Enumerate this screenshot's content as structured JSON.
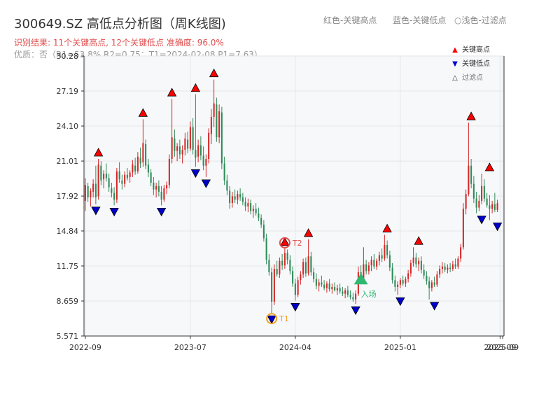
{
  "header": {
    "title": "300649.SZ 高低点分析图（周K线图)",
    "hint_red": "红色-关键高点",
    "hint_blue": "蓝色-关键低点",
    "hint_light": "○浅色-过滤点",
    "summary": "识别结果: 11个关键高点, 12个关键低点  准确度: 96.0%",
    "quality": "优质：否（R1=53.8%  R2=0.75；T1=2024-02-08 P1=7.63）"
  },
  "legend": {
    "high": "关键高点",
    "low": "关键低点",
    "filtered": "过滤点"
  },
  "colors": {
    "up": "#d62728",
    "down": "#2e8b57",
    "high_marker": "#ff0000",
    "low_marker": "#0000cc",
    "t_marker": "#f0a020",
    "t2_marker": "#e24d4d",
    "entry_marker": "#2eb872"
  },
  "chart_data": {
    "type": "candlestick",
    "y_ticks": [
      "5.571",
      "8.659",
      "11.75",
      "14.84",
      "17.92",
      "21.01",
      "24.10",
      "27.19",
      "30.28"
    ],
    "ylim": [
      5.571,
      30.28
    ],
    "x_tick_labels": [
      "2022-09",
      "2023-07",
      "2024-04",
      "2025-01",
      "2025-09",
      "2025-09"
    ],
    "x_tick_weeks": [
      0,
      40,
      80,
      120,
      158,
      159
    ],
    "week_count": 160,
    "annotations": {
      "t1_label": "T1",
      "t2_label": "T2",
      "entry_label": "入场"
    },
    "highs": [
      {
        "week": 5,
        "value": 21.2
      },
      {
        "week": 22,
        "value": 24.7
      },
      {
        "week": 33,
        "value": 26.5
      },
      {
        "week": 42,
        "value": 26.9
      },
      {
        "week": 49,
        "value": 28.2
      },
      {
        "week": 76,
        "value": 13.3
      },
      {
        "week": 85,
        "value": 14.1
      },
      {
        "week": 115,
        "value": 14.5
      },
      {
        "week": 127,
        "value": 13.4
      },
      {
        "week": 147,
        "value": 24.4
      },
      {
        "week": 154,
        "value": 19.9
      }
    ],
    "lows": [
      {
        "week": 4,
        "value": 17.2
      },
      {
        "week": 11,
        "value": 17.1
      },
      {
        "week": 29,
        "value": 17.1
      },
      {
        "week": 42,
        "value": 20.5
      },
      {
        "week": 46,
        "value": 19.6
      },
      {
        "week": 71,
        "value": 7.6
      },
      {
        "week": 80,
        "value": 8.7
      },
      {
        "week": 103,
        "value": 8.4
      },
      {
        "week": 120,
        "value": 9.2
      },
      {
        "week": 133,
        "value": 8.8
      },
      {
        "week": 151,
        "value": 16.4
      },
      {
        "week": 157,
        "value": 15.8
      }
    ],
    "candles": [
      [
        17.5,
        19.5,
        16.6,
        18.9
      ],
      [
        18.8,
        19.1,
        17.4,
        17.8
      ],
      [
        17.8,
        18.6,
        17.0,
        18.4
      ],
      [
        18.3,
        19.4,
        17.8,
        19.0
      ],
      [
        19.0,
        20.6,
        17.2,
        17.8
      ],
      [
        17.9,
        21.2,
        17.6,
        20.7
      ],
      [
        20.6,
        21.0,
        18.9,
        19.3
      ],
      [
        19.4,
        20.2,
        18.6,
        19.9
      ],
      [
        19.9,
        20.8,
        19.2,
        19.5
      ],
      [
        19.5,
        19.9,
        18.3,
        18.7
      ],
      [
        18.6,
        19.1,
        17.8,
        18.2
      ],
      [
        18.2,
        18.7,
        17.1,
        17.6
      ],
      [
        17.6,
        20.4,
        17.3,
        20.1
      ],
      [
        20.1,
        20.9,
        19.1,
        19.4
      ],
      [
        19.3,
        19.8,
        18.5,
        19.0
      ],
      [
        19.0,
        20.1,
        18.7,
        19.8
      ],
      [
        19.8,
        20.4,
        19.3,
        19.5
      ],
      [
        19.6,
        20.2,
        19.1,
        20.0
      ],
      [
        20.0,
        21.1,
        19.6,
        20.7
      ],
      [
        20.6,
        21.3,
        19.8,
        20.1
      ],
      [
        20.1,
        21.8,
        19.9,
        21.4
      ],
      [
        21.3,
        22.2,
        20.4,
        20.8
      ],
      [
        20.9,
        24.7,
        20.5,
        22.6
      ],
      [
        22.5,
        22.9,
        20.3,
        20.6
      ],
      [
        20.7,
        21.2,
        19.6,
        20.0
      ],
      [
        20.0,
        20.3,
        18.8,
        19.1
      ],
      [
        19.1,
        19.6,
        18.0,
        18.5
      ],
      [
        18.5,
        19.1,
        17.8,
        18.8
      ],
      [
        18.8,
        19.3,
        17.9,
        18.3
      ],
      [
        18.3,
        18.8,
        17.1,
        17.6
      ],
      [
        17.6,
        18.9,
        17.4,
        18.6
      ],
      [
        18.6,
        19.2,
        18.1,
        18.9
      ],
      [
        18.9,
        21.6,
        18.6,
        21.2
      ],
      [
        21.2,
        26.5,
        20.8,
        23.1
      ],
      [
        23.0,
        23.8,
        21.4,
        21.9
      ],
      [
        21.9,
        22.6,
        21.0,
        22.3
      ],
      [
        22.3,
        22.9,
        21.2,
        21.6
      ],
      [
        21.6,
        22.4,
        20.8,
        22.0
      ],
      [
        22.0,
        23.5,
        21.5,
        23.0
      ],
      [
        22.9,
        23.6,
        21.7,
        22.1
      ],
      [
        22.1,
        24.5,
        21.9,
        24.0
      ],
      [
        24.0,
        24.8,
        21.6,
        22.0
      ],
      [
        22.0,
        26.9,
        20.5,
        21.3
      ],
      [
        21.4,
        22.9,
        20.9,
        22.4
      ],
      [
        22.4,
        23.2,
        21.1,
        21.5
      ],
      [
        21.5,
        22.3,
        20.2,
        20.6
      ],
      [
        20.6,
        21.6,
        19.6,
        21.2
      ],
      [
        21.2,
        23.9,
        20.8,
        23.5
      ],
      [
        23.4,
        25.6,
        22.5,
        24.9
      ],
      [
        24.9,
        28.2,
        24.0,
        26.1
      ],
      [
        26.0,
        26.6,
        22.7,
        23.1
      ],
      [
        23.1,
        26.0,
        22.6,
        25.4
      ],
      [
        25.3,
        25.8,
        20.3,
        20.8
      ],
      [
        20.8,
        21.4,
        18.9,
        19.3
      ],
      [
        19.3,
        19.8,
        18.0,
        18.4
      ],
      [
        18.4,
        18.8,
        16.8,
        17.3
      ],
      [
        17.3,
        18.3,
        16.9,
        17.9
      ],
      [
        17.9,
        18.5,
        17.3,
        17.6
      ],
      [
        17.6,
        18.4,
        17.2,
        18.1
      ],
      [
        18.1,
        18.6,
        17.5,
        17.8
      ],
      [
        17.8,
        18.2,
        17.1,
        17.4
      ],
      [
        17.4,
        17.8,
        16.6,
        17.0
      ],
      [
        17.0,
        17.7,
        16.5,
        17.3
      ],
      [
        17.3,
        17.6,
        16.3,
        16.6
      ],
      [
        16.6,
        17.1,
        16.0,
        16.8
      ],
      [
        16.8,
        17.3,
        16.2,
        16.4
      ],
      [
        16.4,
        16.9,
        15.7,
        16.0
      ],
      [
        16.0,
        16.3,
        15.1,
        15.4
      ],
      [
        15.4,
        15.8,
        13.9,
        14.2
      ],
      [
        14.2,
        14.6,
        11.9,
        12.3
      ],
      [
        12.3,
        12.8,
        10.9,
        11.2
      ],
      [
        11.2,
        11.6,
        7.6,
        8.6
      ],
      [
        8.6,
        11.9,
        8.3,
        11.5
      ],
      [
        11.5,
        12.2,
        10.8,
        11.0
      ],
      [
        11.0,
        12.5,
        10.7,
        12.2
      ],
      [
        12.2,
        12.8,
        11.4,
        11.8
      ],
      [
        11.8,
        13.3,
        11.5,
        12.9
      ],
      [
        12.9,
        13.2,
        11.9,
        12.3
      ],
      [
        12.3,
        12.7,
        11.0,
        11.3
      ],
      [
        11.3,
        11.7,
        9.9,
        10.2
      ],
      [
        10.2,
        10.6,
        8.7,
        9.2
      ],
      [
        9.2,
        10.8,
        9.0,
        10.5
      ],
      [
        10.5,
        11.3,
        10.1,
        11.0
      ],
      [
        11.0,
        12.4,
        10.7,
        12.1
      ],
      [
        12.1,
        12.5,
        10.8,
        11.1
      ],
      [
        11.1,
        14.1,
        10.9,
        12.6
      ],
      [
        12.6,
        13.0,
        10.9,
        11.2
      ],
      [
        11.2,
        11.6,
        10.3,
        10.6
      ],
      [
        10.6,
        11.1,
        9.7,
        10.0
      ],
      [
        10.0,
        10.6,
        9.5,
        10.3
      ],
      [
        10.3,
        10.9,
        9.9,
        10.1
      ],
      [
        10.1,
        10.5,
        9.6,
        9.8
      ],
      [
        9.8,
        10.4,
        9.4,
        10.2
      ],
      [
        10.2,
        10.6,
        9.5,
        9.7
      ],
      [
        9.7,
        10.2,
        9.3,
        9.9
      ],
      [
        9.9,
        10.3,
        9.5,
        9.6
      ],
      [
        9.6,
        10.1,
        9.2,
        9.8
      ],
      [
        9.8,
        10.2,
        9.3,
        9.5
      ],
      [
        9.5,
        9.9,
        9.1,
        9.3
      ],
      [
        9.3,
        9.8,
        8.9,
        9.6
      ],
      [
        9.6,
        10.0,
        9.0,
        9.2
      ],
      [
        9.2,
        9.6,
        8.8,
        9.0
      ],
      [
        9.0,
        9.4,
        8.6,
        8.8
      ],
      [
        8.8,
        9.6,
        8.4,
        9.3
      ],
      [
        9.3,
        11.7,
        9.1,
        11.2
      ],
      [
        11.2,
        11.8,
        10.3,
        10.6
      ],
      [
        10.6,
        13.4,
        10.4,
        11.9
      ],
      [
        11.9,
        12.3,
        11.0,
        11.3
      ],
      [
        11.3,
        12.1,
        11.0,
        11.8
      ],
      [
        11.8,
        12.6,
        11.3,
        12.3
      ],
      [
        12.3,
        12.8,
        11.5,
        11.7
      ],
      [
        11.7,
        12.4,
        11.4,
        12.2
      ],
      [
        12.2,
        13.0,
        11.8,
        12.7
      ],
      [
        12.7,
        13.3,
        12.1,
        12.4
      ],
      [
        12.4,
        14.5,
        12.2,
        13.6
      ],
      [
        13.6,
        14.0,
        12.4,
        12.7
      ],
      [
        12.7,
        13.1,
        11.3,
        11.6
      ],
      [
        11.6,
        12.0,
        10.2,
        10.5
      ],
      [
        10.5,
        10.9,
        9.5,
        9.9
      ],
      [
        9.9,
        10.4,
        9.2,
        10.1
      ],
      [
        10.1,
        10.7,
        9.8,
        10.5
      ],
      [
        10.5,
        10.9,
        10.0,
        10.2
      ],
      [
        10.2,
        10.8,
        9.9,
        10.6
      ],
      [
        10.6,
        11.4,
        10.3,
        11.1
      ],
      [
        11.1,
        12.3,
        10.8,
        12.0
      ],
      [
        12.0,
        13.4,
        11.7,
        12.5
      ],
      [
        12.5,
        12.9,
        11.6,
        11.9
      ],
      [
        11.9,
        12.5,
        11.3,
        12.2
      ],
      [
        12.2,
        12.6,
        11.1,
        11.4
      ],
      [
        11.4,
        11.9,
        10.6,
        10.9
      ],
      [
        10.9,
        11.3,
        10.1,
        10.4
      ],
      [
        10.4,
        10.8,
        8.8,
        9.8
      ],
      [
        9.8,
        10.5,
        9.5,
        10.3
      ],
      [
        10.3,
        10.8,
        9.9,
        10.1
      ],
      [
        10.1,
        11.3,
        9.9,
        11.0
      ],
      [
        11.0,
        11.8,
        10.7,
        11.5
      ],
      [
        11.5,
        12.1,
        11.1,
        11.7
      ],
      [
        11.7,
        12.0,
        11.2,
        11.4
      ],
      [
        11.4,
        11.9,
        11.1,
        11.6
      ],
      [
        11.6,
        12.0,
        11.2,
        11.5
      ],
      [
        11.5,
        12.2,
        11.3,
        11.9
      ],
      [
        11.9,
        12.4,
        11.5,
        11.7
      ],
      [
        11.7,
        12.6,
        11.5,
        12.4
      ],
      [
        12.4,
        13.7,
        12.1,
        13.4
      ],
      [
        13.4,
        17.3,
        13.2,
        16.8
      ],
      [
        16.8,
        18.5,
        16.3,
        18.1
      ],
      [
        18.1,
        24.4,
        17.9,
        20.6
      ],
      [
        20.6,
        21.2,
        18.6,
        19.0
      ],
      [
        19.0,
        19.7,
        17.3,
        17.7
      ],
      [
        17.7,
        18.3,
        16.4,
        16.9
      ],
      [
        16.9,
        18.0,
        16.6,
        17.5
      ],
      [
        17.5,
        19.9,
        17.2,
        18.8
      ],
      [
        18.8,
        19.4,
        17.4,
        17.7
      ],
      [
        17.7,
        18.2,
        16.9,
        17.1
      ],
      [
        17.1,
        18.0,
        15.8,
        16.8
      ],
      [
        16.8,
        17.5,
        16.4,
        17.2
      ],
      [
        17.2,
        18.2,
        16.5,
        16.7
      ],
      [
        16.7,
        17.6,
        16.5,
        17.3
      ]
    ]
  }
}
